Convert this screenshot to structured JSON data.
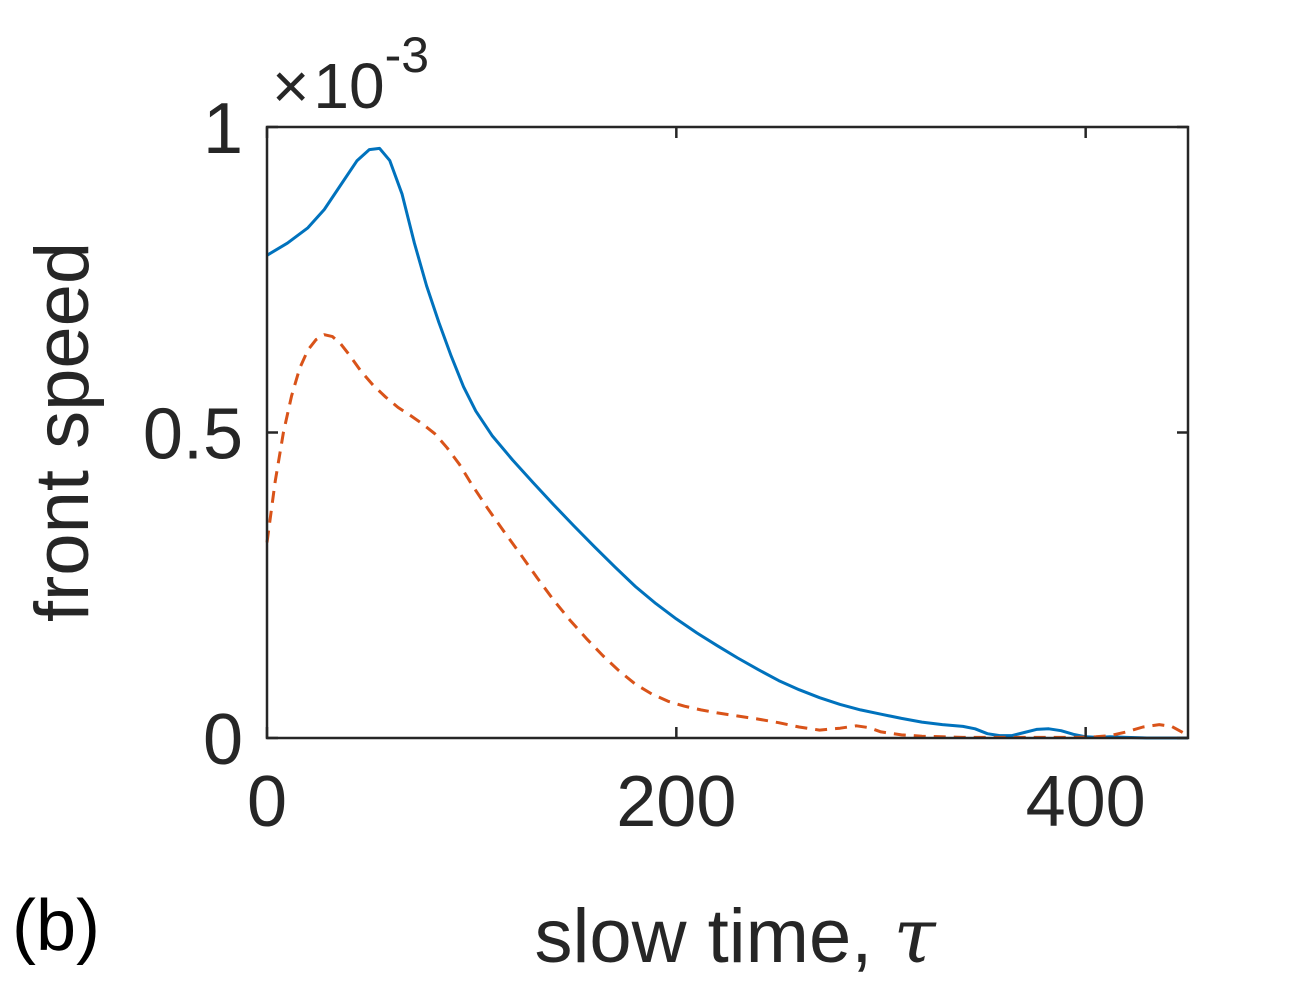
{
  "chart_data": {
    "type": "line",
    "xlabel": "slow time, ",
    "xlabel_symbol": "τ",
    "ylabel": "front speed",
    "panel_label": "(b)",
    "y_multiplier": {
      "times": "×",
      "base": "10",
      "exponent": "-3"
    },
    "xlim": [
      0,
      450
    ],
    "ylim": [
      0,
      1
    ],
    "x_ticks": [
      0,
      200,
      400
    ],
    "x_tick_labels": [
      "0",
      "200",
      "400"
    ],
    "y_ticks": [
      0,
      0.5,
      1
    ],
    "y_tick_labels": [
      "0",
      "0.5",
      "1"
    ],
    "grid": false,
    "box": true,
    "series": [
      {
        "style": "solid",
        "color": "#0072BD",
        "points": [
          [
            0,
            0.79
          ],
          [
            10,
            0.81
          ],
          [
            20,
            0.835
          ],
          [
            28,
            0.865
          ],
          [
            36,
            0.905
          ],
          [
            44,
            0.945
          ],
          [
            50,
            0.963
          ],
          [
            55,
            0.965
          ],
          [
            60,
            0.945
          ],
          [
            66,
            0.89
          ],
          [
            72,
            0.81
          ],
          [
            78,
            0.74
          ],
          [
            84,
            0.68
          ],
          [
            90,
            0.625
          ],
          [
            96,
            0.575
          ],
          [
            102,
            0.535
          ],
          [
            110,
            0.495
          ],
          [
            120,
            0.455
          ],
          [
            130,
            0.418
          ],
          [
            140,
            0.382
          ],
          [
            150,
            0.347
          ],
          [
            160,
            0.313
          ],
          [
            170,
            0.28
          ],
          [
            180,
            0.248
          ],
          [
            190,
            0.22
          ],
          [
            200,
            0.195
          ],
          [
            210,
            0.172
          ],
          [
            220,
            0.151
          ],
          [
            230,
            0.131
          ],
          [
            240,
            0.112
          ],
          [
            250,
            0.094
          ],
          [
            260,
            0.079
          ],
          [
            270,
            0.066
          ],
          [
            280,
            0.055
          ],
          [
            290,
            0.046
          ],
          [
            300,
            0.039
          ],
          [
            310,
            0.032
          ],
          [
            320,
            0.026
          ],
          [
            330,
            0.022
          ],
          [
            340,
            0.019
          ],
          [
            346,
            0.015
          ],
          [
            352,
            0.007
          ],
          [
            358,
            0.004
          ],
          [
            364,
            0.004
          ],
          [
            370,
            0.009
          ],
          [
            376,
            0.014
          ],
          [
            382,
            0.015
          ],
          [
            388,
            0.012
          ],
          [
            394,
            0.006
          ],
          [
            400,
            0.002
          ],
          [
            406,
            0.001
          ],
          [
            412,
            0.002
          ],
          [
            420,
            0.001
          ],
          [
            430,
            0.0
          ],
          [
            440,
            0.0
          ],
          [
            450,
            0.0
          ]
        ]
      },
      {
        "style": "dashed",
        "color": "#D95319",
        "points": [
          [
            0,
            0.32
          ],
          [
            4,
            0.42
          ],
          [
            8,
            0.5
          ],
          [
            12,
            0.56
          ],
          [
            16,
            0.605
          ],
          [
            20,
            0.635
          ],
          [
            24,
            0.652
          ],
          [
            28,
            0.66
          ],
          [
            32,
            0.657
          ],
          [
            36,
            0.645
          ],
          [
            40,
            0.628
          ],
          [
            46,
            0.6
          ],
          [
            52,
            0.577
          ],
          [
            58,
            0.558
          ],
          [
            64,
            0.541
          ],
          [
            70,
            0.528
          ],
          [
            76,
            0.514
          ],
          [
            82,
            0.498
          ],
          [
            88,
            0.475
          ],
          [
            94,
            0.448
          ],
          [
            100,
            0.415
          ],
          [
            108,
            0.375
          ],
          [
            116,
            0.337
          ],
          [
            124,
            0.3
          ],
          [
            132,
            0.262
          ],
          [
            140,
            0.226
          ],
          [
            148,
            0.193
          ],
          [
            156,
            0.163
          ],
          [
            164,
            0.135
          ],
          [
            172,
            0.11
          ],
          [
            180,
            0.088
          ],
          [
            188,
            0.072
          ],
          [
            196,
            0.06
          ],
          [
            204,
            0.052
          ],
          [
            212,
            0.046
          ],
          [
            220,
            0.041
          ],
          [
            230,
            0.036
          ],
          [
            240,
            0.031
          ],
          [
            250,
            0.025
          ],
          [
            260,
            0.018
          ],
          [
            270,
            0.013
          ],
          [
            280,
            0.016
          ],
          [
            288,
            0.02
          ],
          [
            294,
            0.017
          ],
          [
            300,
            0.01
          ],
          [
            310,
            0.005
          ],
          [
            320,
            0.003
          ],
          [
            330,
            0.002
          ],
          [
            340,
            0.001
          ],
          [
            360,
            0.001
          ],
          [
            380,
            0.001
          ],
          [
            395,
            0.001
          ],
          [
            405,
            0.002
          ],
          [
            412,
            0.004
          ],
          [
            420,
            0.01
          ],
          [
            428,
            0.018
          ],
          [
            436,
            0.022
          ],
          [
            442,
            0.019
          ],
          [
            448,
            0.008
          ],
          [
            450,
            0.0
          ]
        ]
      }
    ]
  }
}
